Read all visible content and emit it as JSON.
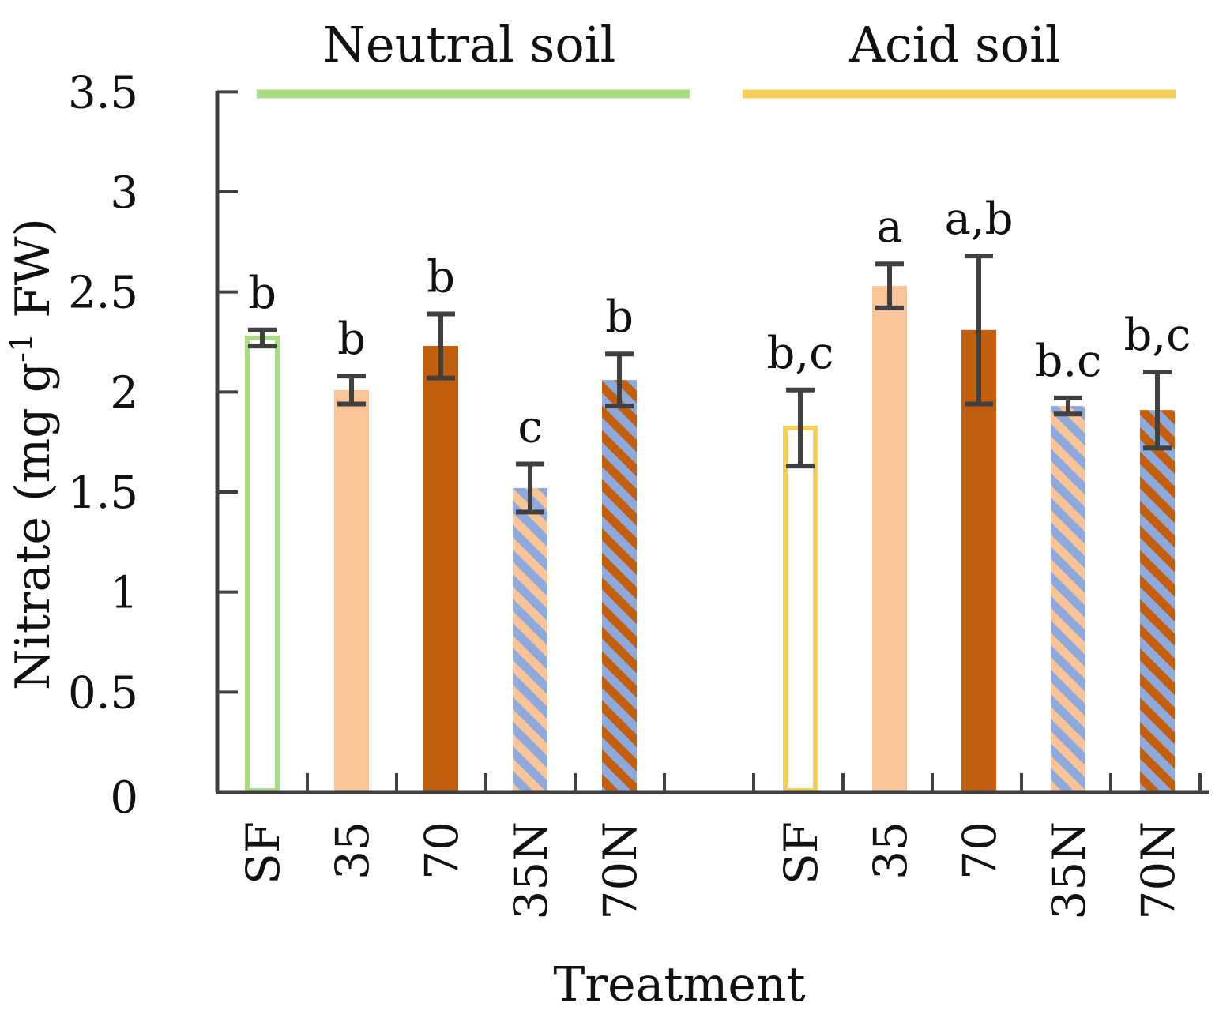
{
  "chart_data": {
    "type": "bar",
    "ylabel_main": "Nitrate (mg g",
    "ylabel_sup": "-1",
    "ylabel_tail": " FW)",
    "xlabel": "Treatment",
    "ylim": [
      0,
      3.5
    ],
    "yticks": [
      "0",
      "0.5",
      "1",
      "1.5",
      "2",
      "2.5",
      "3",
      "3.5"
    ],
    "yticks_values": [
      0,
      0.5,
      1,
      1.5,
      2,
      2.5,
      3,
      3.5
    ],
    "groups": [
      {
        "name": "Neutral soil",
        "line_color": "#a9dd82",
        "bars": [
          {
            "category": "SF",
            "value": 2.27,
            "error": 0.04,
            "sig": "b",
            "style": "outline",
            "color": "#a9dd82"
          },
          {
            "category": "35",
            "value": 2.01,
            "error": 0.07,
            "sig": "b",
            "style": "solid",
            "color": "#f9c498"
          },
          {
            "category": "70",
            "value": 2.23,
            "error": 0.16,
            "sig": "b",
            "style": "solid",
            "color": "#c35e0c"
          },
          {
            "category": "35N",
            "value": 1.52,
            "error": 0.12,
            "sig": "c",
            "style": "hatch",
            "color": "#f9c498",
            "hatch_color": "#8ea9dc"
          },
          {
            "category": "70N",
            "value": 2.06,
            "error": 0.13,
            "sig": "b",
            "style": "hatch",
            "color": "#c35e0c",
            "hatch_color": "#8ea9dc"
          }
        ]
      },
      {
        "name": "Acid soil",
        "line_color": "#f5cf5c",
        "bars": [
          {
            "category": "SF",
            "value": 1.82,
            "error": 0.19,
            "sig": "b,c",
            "style": "outline",
            "color": "#f5cf5c"
          },
          {
            "category": "35",
            "value": 2.53,
            "error": 0.11,
            "sig": "a",
            "style": "solid",
            "color": "#f9c498"
          },
          {
            "category": "70",
            "value": 2.31,
            "error": 0.37,
            "sig": "a,b",
            "style": "solid",
            "color": "#c35e0c"
          },
          {
            "category": "35N",
            "value": 1.93,
            "error": 0.04,
            "sig": "b.c",
            "style": "hatch",
            "color": "#f9c498",
            "hatch_color": "#8ea9dc"
          },
          {
            "category": "70N",
            "value": 1.91,
            "error": 0.19,
            "sig": "b,c",
            "style": "hatch",
            "color": "#c35e0c",
            "hatch_color": "#8ea9dc"
          }
        ]
      }
    ],
    "axis_color": "#404040",
    "errorbar_color": "#404040"
  }
}
